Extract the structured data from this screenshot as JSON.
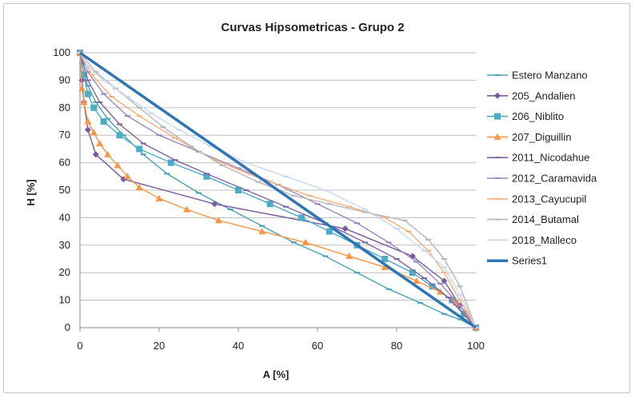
{
  "chart_data": {
    "type": "line",
    "title": "Curvas Hipsometricas -  Grupo 2",
    "xlabel": "A [%]",
    "ylabel": "H [%]",
    "xlim": [
      0,
      100
    ],
    "ylim": [
      0,
      100
    ],
    "x_ticks": [
      0,
      20,
      40,
      60,
      80,
      100
    ],
    "y_ticks": [
      0,
      10,
      20,
      30,
      40,
      50,
      60,
      70,
      80,
      90,
      100
    ],
    "grid": "horizontal",
    "legend_position": "right",
    "series": [
      {
        "name": "Estero Manzano",
        "color": "#4aa3b5",
        "marker": "dash",
        "points": [
          [
            0,
            100
          ],
          [
            0.5,
            96
          ],
          [
            1,
            92
          ],
          [
            2,
            88
          ],
          [
            4,
            82
          ],
          [
            7,
            76
          ],
          [
            11,
            70
          ],
          [
            16,
            63
          ],
          [
            22,
            56
          ],
          [
            30,
            49
          ],
          [
            38,
            43
          ],
          [
            46,
            37
          ],
          [
            54,
            31
          ],
          [
            62,
            26
          ],
          [
            70,
            20
          ],
          [
            78,
            14
          ],
          [
            86,
            9
          ],
          [
            92,
            5
          ],
          [
            96,
            3
          ],
          [
            100,
            0
          ]
        ]
      },
      {
        "name": "205_Andalien",
        "color": "#7b57a0",
        "marker": "diamond",
        "points": [
          [
            0,
            100
          ],
          [
            0.5,
            90
          ],
          [
            1,
            82
          ],
          [
            2,
            72
          ],
          [
            4,
            63
          ],
          [
            11,
            54
          ],
          [
            34,
            45
          ],
          [
            67,
            36
          ],
          [
            84,
            26
          ],
          [
            92,
            17
          ],
          [
            96,
            8
          ],
          [
            100,
            0
          ]
        ]
      },
      {
        "name": "206_Niblito",
        "color": "#4bacc6",
        "marker": "square",
        "points": [
          [
            0,
            100
          ],
          [
            1,
            92
          ],
          [
            2,
            85
          ],
          [
            3.5,
            80
          ],
          [
            6,
            75
          ],
          [
            10,
            70
          ],
          [
            15,
            65
          ],
          [
            23,
            60
          ],
          [
            32,
            55
          ],
          [
            40,
            50
          ],
          [
            48,
            45
          ],
          [
            56,
            40
          ],
          [
            63,
            35
          ],
          [
            70,
            30
          ],
          [
            77,
            25
          ],
          [
            84,
            20
          ],
          [
            89,
            15
          ],
          [
            94,
            10
          ],
          [
            97,
            5
          ],
          [
            100,
            0
          ]
        ]
      },
      {
        "name": "207_Diguillin",
        "color": "#f79646",
        "marker": "triangle",
        "points": [
          [
            0,
            100
          ],
          [
            0.5,
            87
          ],
          [
            1,
            82
          ],
          [
            2,
            75
          ],
          [
            3.5,
            71
          ],
          [
            5,
            67
          ],
          [
            7,
            63
          ],
          [
            9.5,
            59
          ],
          [
            12,
            55
          ],
          [
            15,
            51
          ],
          [
            20,
            47
          ],
          [
            27,
            43
          ],
          [
            35,
            39
          ],
          [
            46,
            35
          ],
          [
            57,
            31
          ],
          [
            68,
            26
          ],
          [
            77,
            22
          ],
          [
            85,
            17
          ],
          [
            91,
            13
          ],
          [
            95,
            9
          ],
          [
            98,
            5
          ],
          [
            100,
            0
          ]
        ]
      },
      {
        "name": "2011_Nicodahue",
        "color": "#8064a2",
        "marker": "dash",
        "points": [
          [
            0,
            100
          ],
          [
            2,
            90
          ],
          [
            5,
            82
          ],
          [
            10,
            74
          ],
          [
            16,
            67
          ],
          [
            24,
            61
          ],
          [
            32,
            56
          ],
          [
            42,
            50
          ],
          [
            52,
            44
          ],
          [
            62,
            38
          ],
          [
            72,
            31
          ],
          [
            80,
            25
          ],
          [
            87,
            18
          ],
          [
            93,
            11
          ],
          [
            100,
            0
          ]
        ]
      },
      {
        "name": "2012_Caramavida",
        "color": "#9c88c0",
        "marker": "dash",
        "points": [
          [
            0,
            100
          ],
          [
            2,
            93
          ],
          [
            6,
            85
          ],
          [
            12,
            77
          ],
          [
            20,
            70
          ],
          [
            30,
            64
          ],
          [
            40,
            58
          ],
          [
            50,
            52
          ],
          [
            60,
            45
          ],
          [
            70,
            38
          ],
          [
            78,
            31
          ],
          [
            85,
            24
          ],
          [
            91,
            16
          ],
          [
            96,
            8
          ],
          [
            100,
            0
          ]
        ]
      },
      {
        "name": "2013_Cayucupil",
        "color": "#f7b07b",
        "marker": "dash",
        "points": [
          [
            0,
            100
          ],
          [
            3,
            92
          ],
          [
            8,
            84
          ],
          [
            15,
            77
          ],
          [
            24,
            69
          ],
          [
            34,
            61
          ],
          [
            46,
            54
          ],
          [
            58,
            48
          ],
          [
            68,
            44
          ],
          [
            77,
            40
          ],
          [
            83,
            35
          ],
          [
            88,
            28
          ],
          [
            92,
            20
          ],
          [
            96,
            10
          ],
          [
            100,
            0
          ]
        ]
      },
      {
        "name": "2014_Butamal",
        "color": "#b7b7b7",
        "marker": "dash",
        "points": [
          [
            0,
            100
          ],
          [
            4,
            93
          ],
          [
            9,
            87
          ],
          [
            15,
            80
          ],
          [
            21,
            73
          ],
          [
            28,
            66
          ],
          [
            36,
            59
          ],
          [
            45,
            53
          ],
          [
            54,
            48
          ],
          [
            63,
            45
          ],
          [
            72,
            42
          ],
          [
            82,
            39
          ],
          [
            88,
            32
          ],
          [
            92,
            25
          ],
          [
            96,
            15
          ],
          [
            100,
            0
          ]
        ]
      },
      {
        "name": "2018_Malleco",
        "color": "#c5d9f1",
        "marker": "dash",
        "points": [
          [
            0,
            100
          ],
          [
            2,
            95
          ],
          [
            6,
            90
          ],
          [
            12,
            84
          ],
          [
            18,
            78
          ],
          [
            25,
            72
          ],
          [
            33,
            66
          ],
          [
            42,
            60
          ],
          [
            52,
            55
          ],
          [
            62,
            50
          ],
          [
            72,
            43
          ],
          [
            80,
            36
          ],
          [
            87,
            28
          ],
          [
            92,
            22
          ],
          [
            96,
            12
          ],
          [
            100,
            0
          ]
        ]
      },
      {
        "name": "Series1",
        "color": "#2e75b6",
        "marker": "dash",
        "points": [
          [
            0,
            100
          ],
          [
            100,
            0
          ]
        ]
      }
    ]
  }
}
